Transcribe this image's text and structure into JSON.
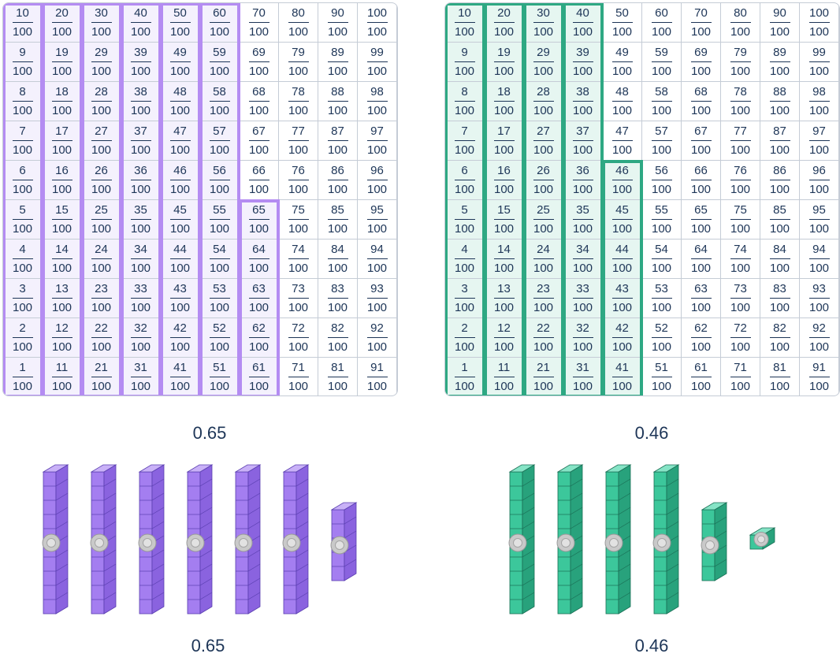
{
  "colors": {
    "purple": "#b48cf2",
    "green": "#2ea883",
    "text": "#1d3557",
    "grid_line": "#c5ccd6"
  },
  "denominator": "100",
  "left_panel": {
    "shaded_count": 65,
    "decimal_label": "0.65",
    "blocks_label": "0.65",
    "rods": 6,
    "units": 5,
    "color": "purple"
  },
  "right_panel": {
    "shaded_count": 46,
    "decimal_label": "0.46",
    "blocks_label": "0.46",
    "rods": 4,
    "units": 6,
    "color": "green"
  }
}
